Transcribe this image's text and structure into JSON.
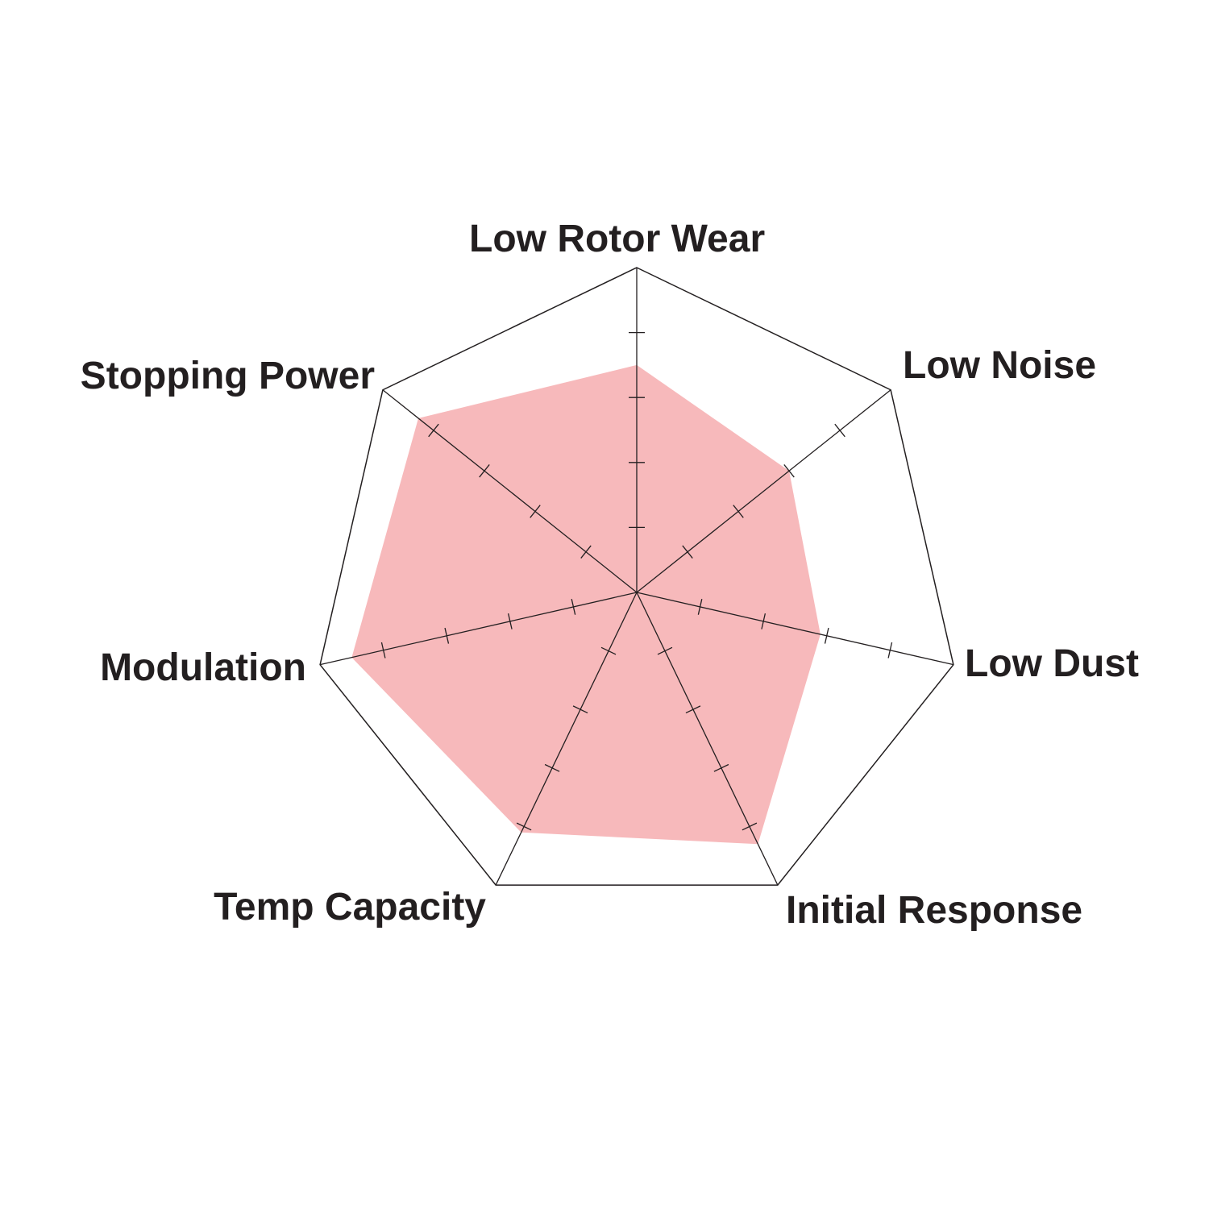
{
  "chart_data": {
    "type": "radar",
    "title": "",
    "axes": [
      "Low Rotor Wear",
      "Low Noise",
      "Low Dust",
      "Initial Response",
      "Temp Capacity",
      "Modulation",
      "Stopping Power"
    ],
    "values": [
      3.5,
      3.0,
      2.9,
      4.3,
      4.1,
      4.5,
      4.3
    ],
    "range": [
      0,
      5
    ],
    "tick_levels": [
      1,
      2,
      3,
      4
    ],
    "grid": "outer heptagon only",
    "fill_color": "#f7b9bb",
    "line_color": "#231f20"
  }
}
